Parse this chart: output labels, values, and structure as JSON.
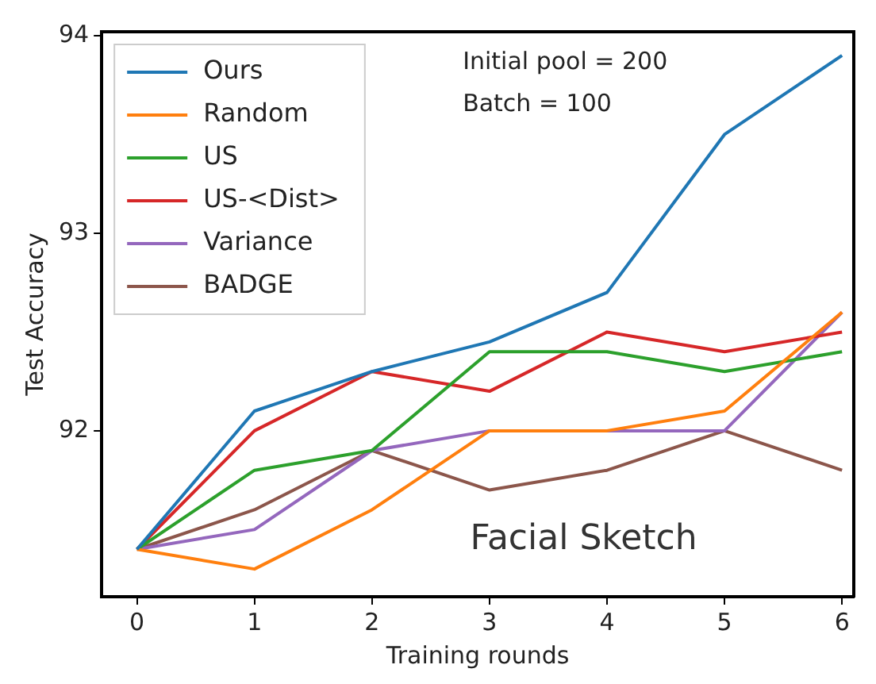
{
  "chart_data": {
    "type": "line",
    "xlabel": "Training rounds",
    "ylabel": "Test Accuracy",
    "x": [
      0,
      1,
      2,
      3,
      4,
      5,
      6
    ],
    "xlim": [
      -0.3,
      6.1
    ],
    "xticks": [
      0,
      1,
      2,
      3,
      4,
      5,
      6
    ],
    "ylim": [
      91.16,
      94.02
    ],
    "yticks": [
      92,
      93,
      94
    ],
    "grid": false,
    "legend": "top left",
    "marker": "none",
    "line_style": "solid",
    "annotations": [
      "Initial pool = 200",
      "Batch = 100",
      "Facial Sketch"
    ],
    "series": [
      {
        "name": "Ours",
        "color": "#1f77b4",
        "values": [
          91.4,
          92.1,
          92.3,
          92.45,
          92.7,
          93.5,
          93.9
        ]
      },
      {
        "name": "Random",
        "color": "#ff7f0e",
        "values": [
          91.4,
          91.3,
          91.6,
          92.0,
          92.0,
          92.1,
          92.6
        ]
      },
      {
        "name": "US",
        "color": "#2ca02c",
        "values": [
          91.4,
          91.8,
          91.9,
          92.4,
          92.4,
          92.3,
          92.4
        ]
      },
      {
        "name": "US-<Dist>",
        "color": "#d62728",
        "values": [
          91.4,
          92.0,
          92.3,
          92.2,
          92.5,
          92.4,
          92.5
        ]
      },
      {
        "name": "Variance",
        "color": "#9467bd",
        "values": [
          91.4,
          91.5,
          91.9,
          92.0,
          92.0,
          92.0,
          92.6
        ]
      },
      {
        "name": "BADGE",
        "color": "#8c564b",
        "values": [
          91.4,
          91.6,
          91.9,
          91.7,
          91.8,
          92.0,
          91.8
        ]
      }
    ]
  }
}
